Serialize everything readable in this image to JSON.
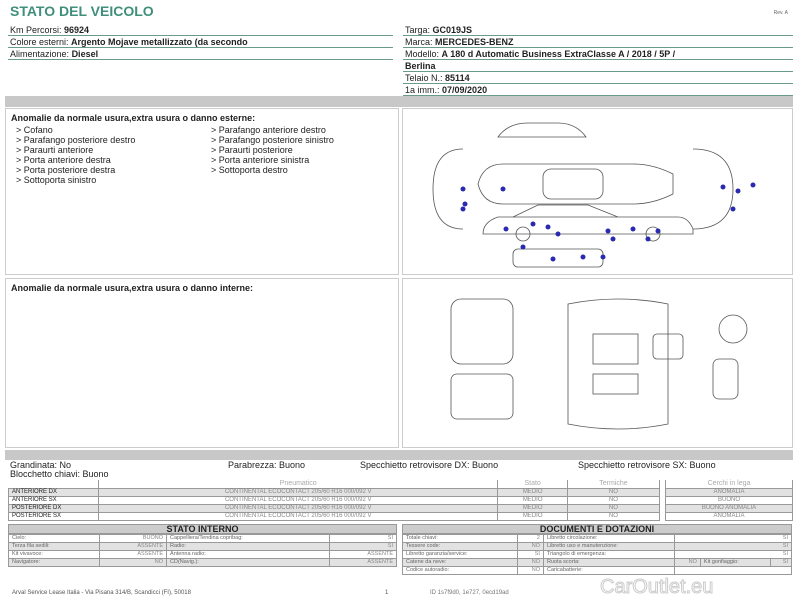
{
  "title": "STATO DEL VEICOLO",
  "rev": "Rev. A",
  "left_fields": [
    {
      "label": "Km Percorsi:",
      "value": "96924"
    },
    {
      "label": "Colore esterni:",
      "value": "Argento Mojave metallizzato (da secondo"
    },
    {
      "label": "Alimentazione:",
      "value": "Diesel"
    }
  ],
  "right_fields": [
    {
      "label": "Targa:",
      "value": "GC019JS"
    },
    {
      "label": "Marca:",
      "value": "MERCEDES-BENZ"
    },
    {
      "label": "Modello:",
      "value": "A 180 d Automatic Business ExtraClasse A / 2018 / 5P /"
    },
    {
      "label": "",
      "value": "Berlina"
    },
    {
      "label": "Telaio N.:",
      "value": "85114"
    },
    {
      "label": "1a imm.:",
      "value": "07/09/2020"
    }
  ],
  "exterior": {
    "title": "Anomalie da normale usura,extra usura o danno esterne:",
    "col1": [
      "> Cofano",
      "> Parafango posteriore destro",
      "> Paraurti anteriore",
      "> Porta anteriore destra",
      "> Porta posteriore destra",
      "> Sottoporta sinistro"
    ],
    "col2": [
      "> Parafango anteriore destro",
      "> Parafango posteriore sinistro",
      "> Paraurti posteriore",
      "> Porta anteriore sinistra",
      "> Sottoporta destro"
    ]
  },
  "interior": {
    "title": "Anomalie da normale usura,extra usura o danno interne:"
  },
  "info": {
    "grandinata": "Grandinata: No",
    "blocchetto": "Blocchetto chiavi: Buono",
    "parabrezza": "Parabrezza: Buono",
    "spec_dx": "Specchietto retrovisore DX: Buono",
    "spec_sx": "Specchietto retrovisore SX: Buono"
  },
  "tires": {
    "headers": [
      "Pneumatico",
      "Stato",
      "Termiche"
    ],
    "rows": [
      [
        "ANTERIORE DX",
        "CONTINENTAL ECOCONTACT 205/60 R16 000/092 V",
        "MEDIO",
        "NO"
      ],
      [
        "ANTERIORE SX",
        "CONTINENTAL ECOCONTACT 205/60 R16 000/092 V",
        "MEDIO",
        "NO"
      ],
      [
        "POSTERIORE DX",
        "CONTINENTAL ECOCONTACT 205/60 R16 000/092 V",
        "MEDIO",
        "NO"
      ],
      [
        "POSTERIORE SX",
        "CONTINENTAL ECOCONTACT 205/60 R16 000/092 V",
        "MEDIO",
        "NO"
      ]
    ]
  },
  "rims": {
    "header": "Cerchi in lega",
    "rows": [
      "ANOMALIA",
      "BUONO",
      "BUONO ANOMALIA",
      "ANOMALIA"
    ]
  },
  "stato_interno": {
    "title": "STATO INTERNO",
    "rows": [
      [
        "Cielo:",
        "BUONO",
        "Cappelliera/Tendina copribag:",
        "SI"
      ],
      [
        "Terza fila sedili:",
        "ASSENTE",
        "Radio:",
        "SI"
      ],
      [
        "Kit vivavoce:",
        "ASSENTE",
        "Antenna radio:",
        "ASSENTE"
      ],
      [
        "Navigatore:",
        "NO",
        "CD(Navig.):",
        "ASSENTE"
      ]
    ]
  },
  "documenti": {
    "title": "DOCUMENTI E DOTAZIONI",
    "rows": [
      [
        "Totale chiavi:",
        "2",
        "Libretto circolazione:",
        "SI"
      ],
      [
        "Tessere code:",
        "NO",
        "Libretto uso e manutenzione:",
        "SI"
      ],
      [
        "Libretto garanzia/service:",
        "SI",
        "Triangolo di emergenza:",
        "SI"
      ],
      [
        "Catene da neve:",
        "NO",
        "Ruota scorta:",
        "NO",
        "Kit gonfiaggio:",
        "SI"
      ],
      [
        "Codice autoradio:",
        "NO",
        "Caricabatterie:",
        ""
      ]
    ]
  },
  "footer": {
    "address": "Arval Service Lease Italia - Via Pisana 314/B, Scandicci (FI), 50018",
    "page": "1",
    "watermark": "CarOutlet.eu",
    "right": "ID 1s7f9d0, 1e727, 0ecd19ad"
  },
  "colors": {
    "title": "#3f8f7a",
    "damage_dot": "#2a2ab0"
  }
}
